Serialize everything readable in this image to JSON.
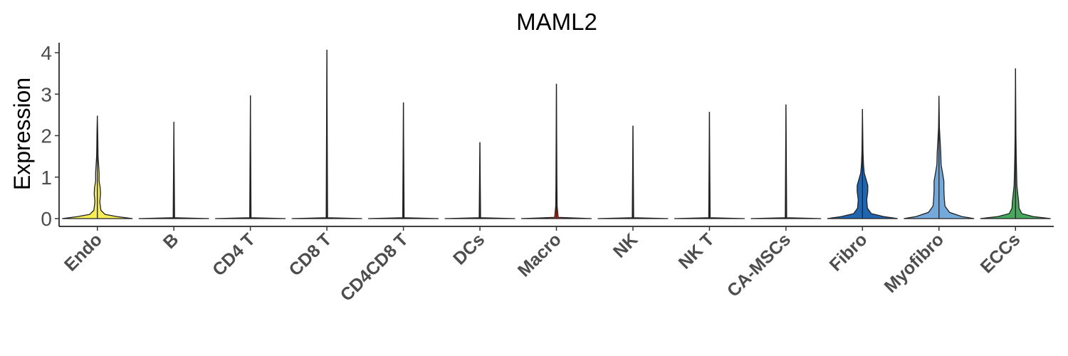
{
  "chart_data": {
    "type": "violin",
    "title": "MAML2",
    "xlabel": "",
    "ylabel": "Expression",
    "ylim": [
      -0.2,
      4.3
    ],
    "yticks": [
      0,
      1,
      2,
      3,
      4
    ],
    "grid": false,
    "legend": "none",
    "categories": [
      "Endo",
      "B",
      "CD4 T",
      "CD8 T",
      "CD4CD8 T",
      "DCs",
      "Macro",
      "NK",
      "NK T",
      "CA-MSCs",
      "Fibro",
      "Myofibro",
      "ECCs"
    ],
    "series": [
      {
        "category": "Endo",
        "max": 2.48,
        "color": "#F7EE55",
        "profile": [
          [
            0,
            1.0
          ],
          [
            0.05,
            0.55
          ],
          [
            0.1,
            0.22
          ],
          [
            0.2,
            0.1
          ],
          [
            0.4,
            0.07
          ],
          [
            0.6,
            0.09
          ],
          [
            0.75,
            0.08
          ],
          [
            0.9,
            0.05
          ],
          [
            1.1,
            0.05
          ],
          [
            1.25,
            0.04
          ],
          [
            1.5,
            0.02
          ],
          [
            1.8,
            0.015
          ],
          [
            2.1,
            0.01
          ],
          [
            2.48,
            0.0
          ]
        ]
      },
      {
        "category": "B",
        "max": 2.33,
        "color": "#F7EE55",
        "profile": [
          [
            0,
            1.0
          ],
          [
            0.02,
            0.02
          ],
          [
            2.33,
            0.0
          ]
        ]
      },
      {
        "category": "CD4 T",
        "max": 2.97,
        "color": "#F7EE55",
        "profile": [
          [
            0,
            1.0
          ],
          [
            0.02,
            0.02
          ],
          [
            2.97,
            0.0
          ]
        ]
      },
      {
        "category": "CD8 T",
        "max": 4.07,
        "color": "#F7EE55",
        "profile": [
          [
            0,
            1.0
          ],
          [
            0.02,
            0.02
          ],
          [
            4.07,
            0.0
          ]
        ]
      },
      {
        "category": "CD4CD8 T",
        "max": 2.8,
        "color": "#F7EE55",
        "profile": [
          [
            0,
            1.0
          ],
          [
            0.02,
            0.02
          ],
          [
            2.8,
            0.0
          ]
        ]
      },
      {
        "category": "DCs",
        "max": 1.84,
        "color": "#F7EE55",
        "profile": [
          [
            0,
            1.0
          ],
          [
            0.02,
            0.02
          ],
          [
            1.84,
            0.0
          ]
        ]
      },
      {
        "category": "Macro",
        "max": 3.25,
        "color": "#C0392B",
        "profile": [
          [
            0,
            1.0
          ],
          [
            0.03,
            0.05
          ],
          [
            0.3,
            0.02
          ],
          [
            0.8,
            0.015
          ],
          [
            3.25,
            0.0
          ]
        ]
      },
      {
        "category": "NK",
        "max": 2.24,
        "color": "#F7EE55",
        "profile": [
          [
            0,
            1.0
          ],
          [
            0.02,
            0.02
          ],
          [
            2.24,
            0.0
          ]
        ]
      },
      {
        "category": "NK T",
        "max": 2.57,
        "color": "#F7EE55",
        "profile": [
          [
            0,
            1.0
          ],
          [
            0.02,
            0.02
          ],
          [
            2.57,
            0.0
          ]
        ]
      },
      {
        "category": "CA-MSCs",
        "max": 2.75,
        "color": "#F7EE55",
        "profile": [
          [
            0,
            1.0
          ],
          [
            0.02,
            0.02
          ],
          [
            2.75,
            0.0
          ]
        ]
      },
      {
        "category": "Fibro",
        "max": 2.64,
        "color": "#1F65B0",
        "profile": [
          [
            0,
            1.0
          ],
          [
            0.05,
            0.6
          ],
          [
            0.12,
            0.25
          ],
          [
            0.25,
            0.14
          ],
          [
            0.45,
            0.12
          ],
          [
            0.65,
            0.15
          ],
          [
            0.8,
            0.15
          ],
          [
            0.95,
            0.1
          ],
          [
            1.1,
            0.05
          ],
          [
            1.3,
            0.03
          ],
          [
            1.6,
            0.015
          ],
          [
            2.0,
            0.01
          ],
          [
            2.64,
            0.0
          ]
        ]
      },
      {
        "category": "Myofibro",
        "max": 2.96,
        "color": "#74A9DC",
        "profile": [
          [
            0,
            1.0
          ],
          [
            0.05,
            0.65
          ],
          [
            0.15,
            0.3
          ],
          [
            0.3,
            0.17
          ],
          [
            0.5,
            0.15
          ],
          [
            0.7,
            0.14
          ],
          [
            0.9,
            0.14
          ],
          [
            1.1,
            0.1
          ],
          [
            1.3,
            0.06
          ],
          [
            1.6,
            0.05
          ],
          [
            1.9,
            0.03
          ],
          [
            2.2,
            0.012
          ],
          [
            2.96,
            0.0
          ]
        ]
      },
      {
        "category": "ECCs",
        "max": 3.62,
        "color": "#45A85B",
        "profile": [
          [
            0,
            1.0
          ],
          [
            0.05,
            0.5
          ],
          [
            0.12,
            0.18
          ],
          [
            0.25,
            0.1
          ],
          [
            0.4,
            0.09
          ],
          [
            0.55,
            0.07
          ],
          [
            0.8,
            0.04
          ],
          [
            1.1,
            0.03
          ],
          [
            1.5,
            0.02
          ],
          [
            2.0,
            0.012
          ],
          [
            3.62,
            0.0
          ]
        ]
      }
    ]
  }
}
